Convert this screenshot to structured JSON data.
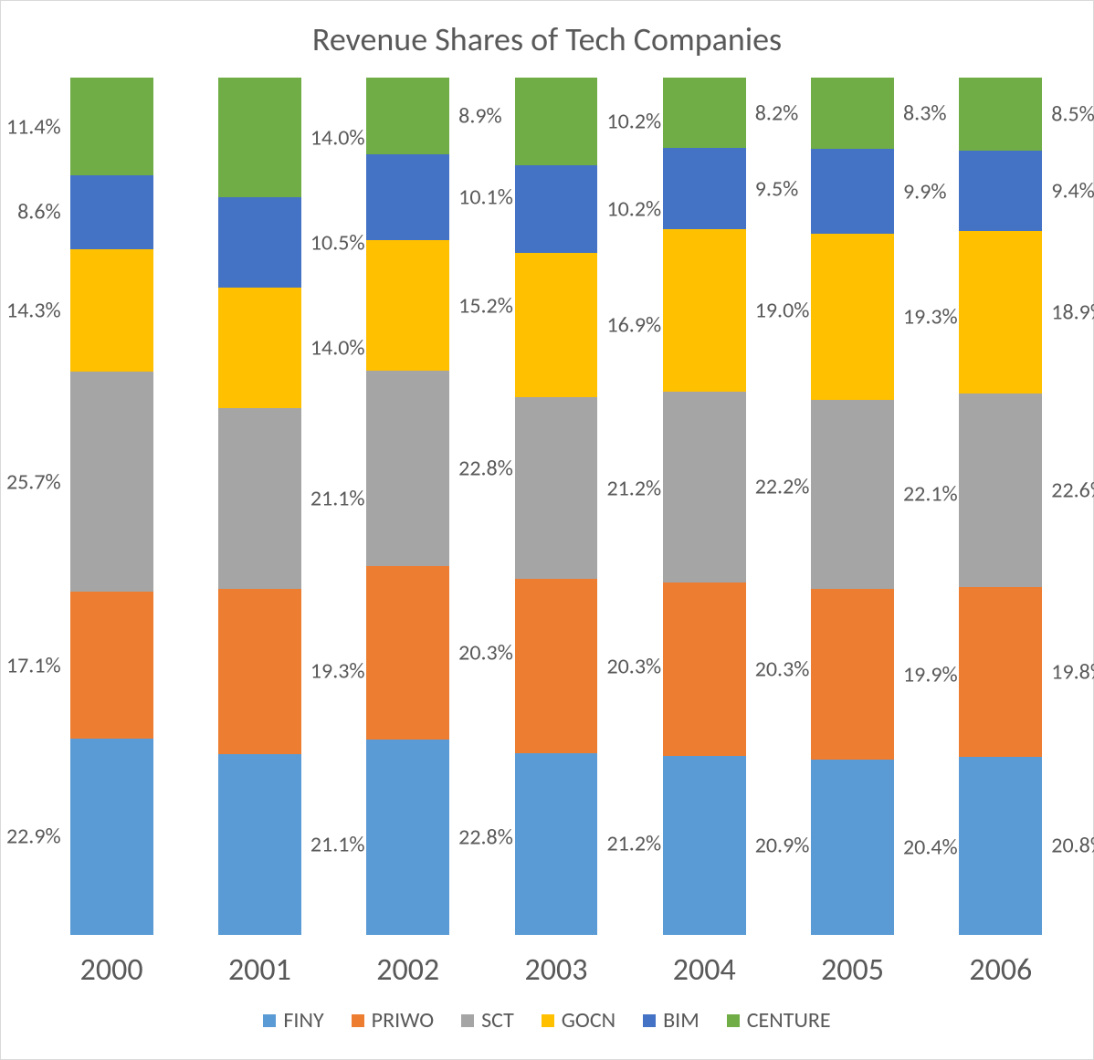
{
  "chart": {
    "type": "stacked-bar-100",
    "title": "Revenue Shares of Tech Companies",
    "title_fontsize": 36,
    "title_color": "#595959",
    "background_color": "#ffffff",
    "frame_border_color": "#d9d9d9",
    "label_fontsize": 24,
    "label_color": "#595959",
    "axis_fontsize": 34,
    "axis_color": "#595959",
    "legend_fontsize": 24,
    "legend_color": "#595959",
    "value_suffix": "%",
    "ylim": [
      0,
      100
    ],
    "categories": [
      "2000",
      "2001",
      "2002",
      "2003",
      "2004",
      "2005",
      "2006"
    ],
    "series": [
      {
        "name": "FINY",
        "color": "#5b9bd5",
        "values": [
          22.9,
          21.1,
          22.8,
          21.2,
          20.9,
          20.4,
          20.8
        ]
      },
      {
        "name": "PRIWO",
        "color": "#ed7d31",
        "values": [
          17.1,
          19.3,
          20.3,
          20.3,
          20.3,
          19.9,
          19.8
        ]
      },
      {
        "name": "SCT",
        "color": "#a5a5a5",
        "values": [
          25.7,
          21.1,
          22.8,
          21.2,
          22.2,
          22.1,
          22.6
        ]
      },
      {
        "name": "GOCN",
        "color": "#ffc000",
        "values": [
          14.3,
          14.0,
          15.2,
          16.9,
          19.0,
          19.3,
          18.9
        ]
      },
      {
        "name": "BIM",
        "color": "#4472c4",
        "values": [
          8.6,
          10.5,
          10.1,
          10.2,
          9.5,
          9.9,
          9.4
        ]
      },
      {
        "name": "CENTURE",
        "color": "#70ad47",
        "values": [
          11.4,
          14.0,
          8.9,
          10.2,
          8.2,
          8.3,
          8.5
        ]
      }
    ],
    "label_sides": [
      "left",
      "right",
      "right",
      "right",
      "right",
      "right",
      "right"
    ]
  }
}
